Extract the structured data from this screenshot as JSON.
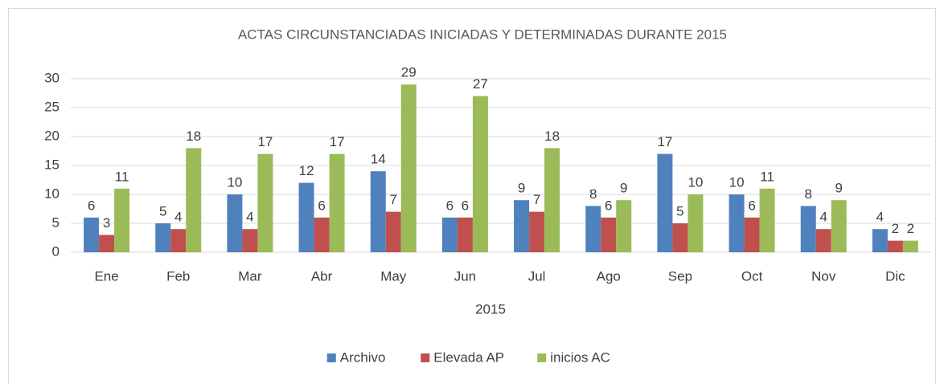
{
  "chart_data": {
    "type": "bar",
    "title": "ACTAS CIRCUNSTANCIADAS INICIADAS Y DETERMINADAS DURANTE 2015",
    "x_label": "2015",
    "categories": [
      "Ene",
      "Feb",
      "Mar",
      "Abr",
      "May",
      "Jun",
      "Jul",
      "Ago",
      "Sep",
      "Oct",
      "Nov",
      "Dic"
    ],
    "series": [
      {
        "name": "Archivo",
        "color": "#4f81bd",
        "values": [
          6,
          5,
          10,
          12,
          14,
          6,
          9,
          8,
          17,
          10,
          8,
          4
        ]
      },
      {
        "name": "Elevada AP",
        "color": "#c0504d",
        "values": [
          3,
          4,
          4,
          6,
          7,
          6,
          7,
          6,
          5,
          6,
          4,
          2
        ]
      },
      {
        "name": "inicios AC",
        "color": "#9bbb59",
        "values": [
          11,
          18,
          17,
          17,
          29,
          27,
          18,
          9,
          10,
          11,
          9,
          2
        ]
      }
    ],
    "ylim": [
      0,
      30
    ],
    "yticks": [
      0,
      5,
      10,
      15,
      20,
      25,
      30
    ],
    "grid": true,
    "legend": "bottom"
  }
}
